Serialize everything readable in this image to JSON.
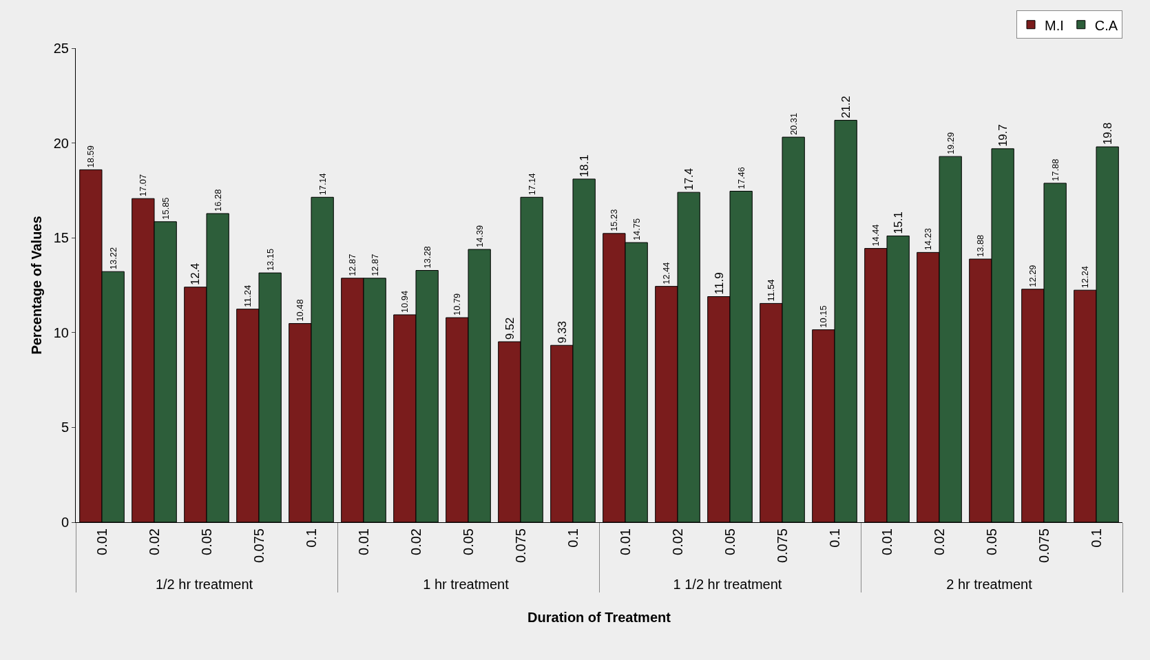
{
  "chart_data": {
    "type": "bar",
    "xlabel": "Duration of Treatment",
    "ylabel": "Percentage of Values",
    "categories": [
      "0.01",
      "0.02",
      "0.05",
      "0.075",
      "0.1",
      "0.01",
      "0.02",
      "0.05",
      "0.075",
      "0.1",
      "0.01",
      "0.02",
      "0.05",
      "0.075",
      "0.1",
      "0.01",
      "0.02",
      "0.05",
      "0.075",
      "0.1"
    ],
    "annotations": [
      "1/2 hr treatment",
      "1 hr treatment",
      "1 1/2 hr treatment",
      "2 hr treatment"
    ],
    "series": [
      {
        "name": "M.I",
        "color": "#7a1c1c",
        "values": [
          18.59,
          17.07,
          12.4,
          11.24,
          10.48,
          12.87,
          10.94,
          10.79,
          9.52,
          9.33,
          15.23,
          12.44,
          11.9,
          11.54,
          10.15,
          14.44,
          14.23,
          13.88,
          12.29,
          12.24
        ]
      },
      {
        "name": "C.A",
        "color": "#2d5e3a",
        "values": [
          13.22,
          15.85,
          16.28,
          13.15,
          17.14,
          12.87,
          13.28,
          14.39,
          17.14,
          18.1,
          14.75,
          17.4,
          17.46,
          20.31,
          21.2,
          15.1,
          19.29,
          19.7,
          17.88,
          19.8
        ]
      }
    ],
    "ylim": [
      0,
      25
    ],
    "yticks": [
      0,
      5,
      10,
      15,
      20,
      25
    ],
    "grid": false,
    "legend": "top right",
    "data_labels": true
  }
}
